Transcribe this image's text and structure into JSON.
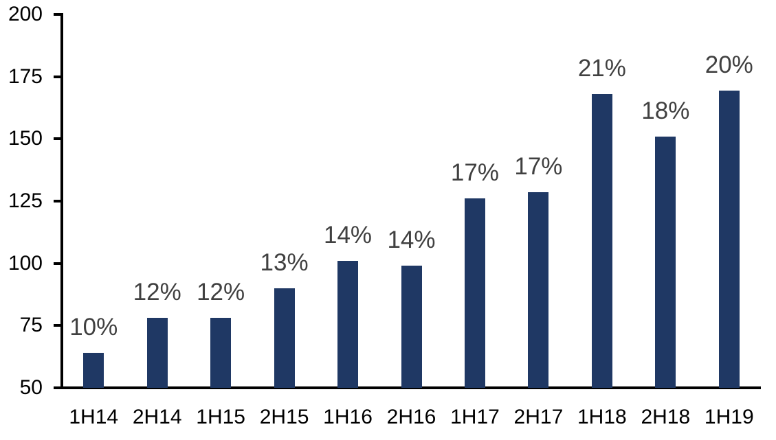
{
  "chart_data": {
    "type": "bar",
    "title": "",
    "xlabel": "",
    "ylabel": "",
    "categories": [
      "1H14",
      "2H14",
      "1H15",
      "2H15",
      "1H16",
      "2H16",
      "1H17",
      "2H17",
      "1H18",
      "2H18",
      "1H19"
    ],
    "values": [
      64,
      78,
      78,
      90,
      101,
      99,
      126,
      128.5,
      168,
      151,
      169.5
    ],
    "data_labels": [
      "10%",
      "12%",
      "12%",
      "13%",
      "14%",
      "14%",
      "17%",
      "17%",
      "21%",
      "18%",
      "20%"
    ],
    "ylim": [
      50,
      200
    ],
    "yticks": [
      50,
      75,
      100,
      125,
      150,
      175,
      200
    ],
    "grid": false,
    "legend_position": "none",
    "colors": {
      "bar_fill": "#1f3864",
      "data_label": "#404040",
      "axis_line": "#000000",
      "tick_label": "#000000",
      "background": "#ffffff"
    }
  }
}
